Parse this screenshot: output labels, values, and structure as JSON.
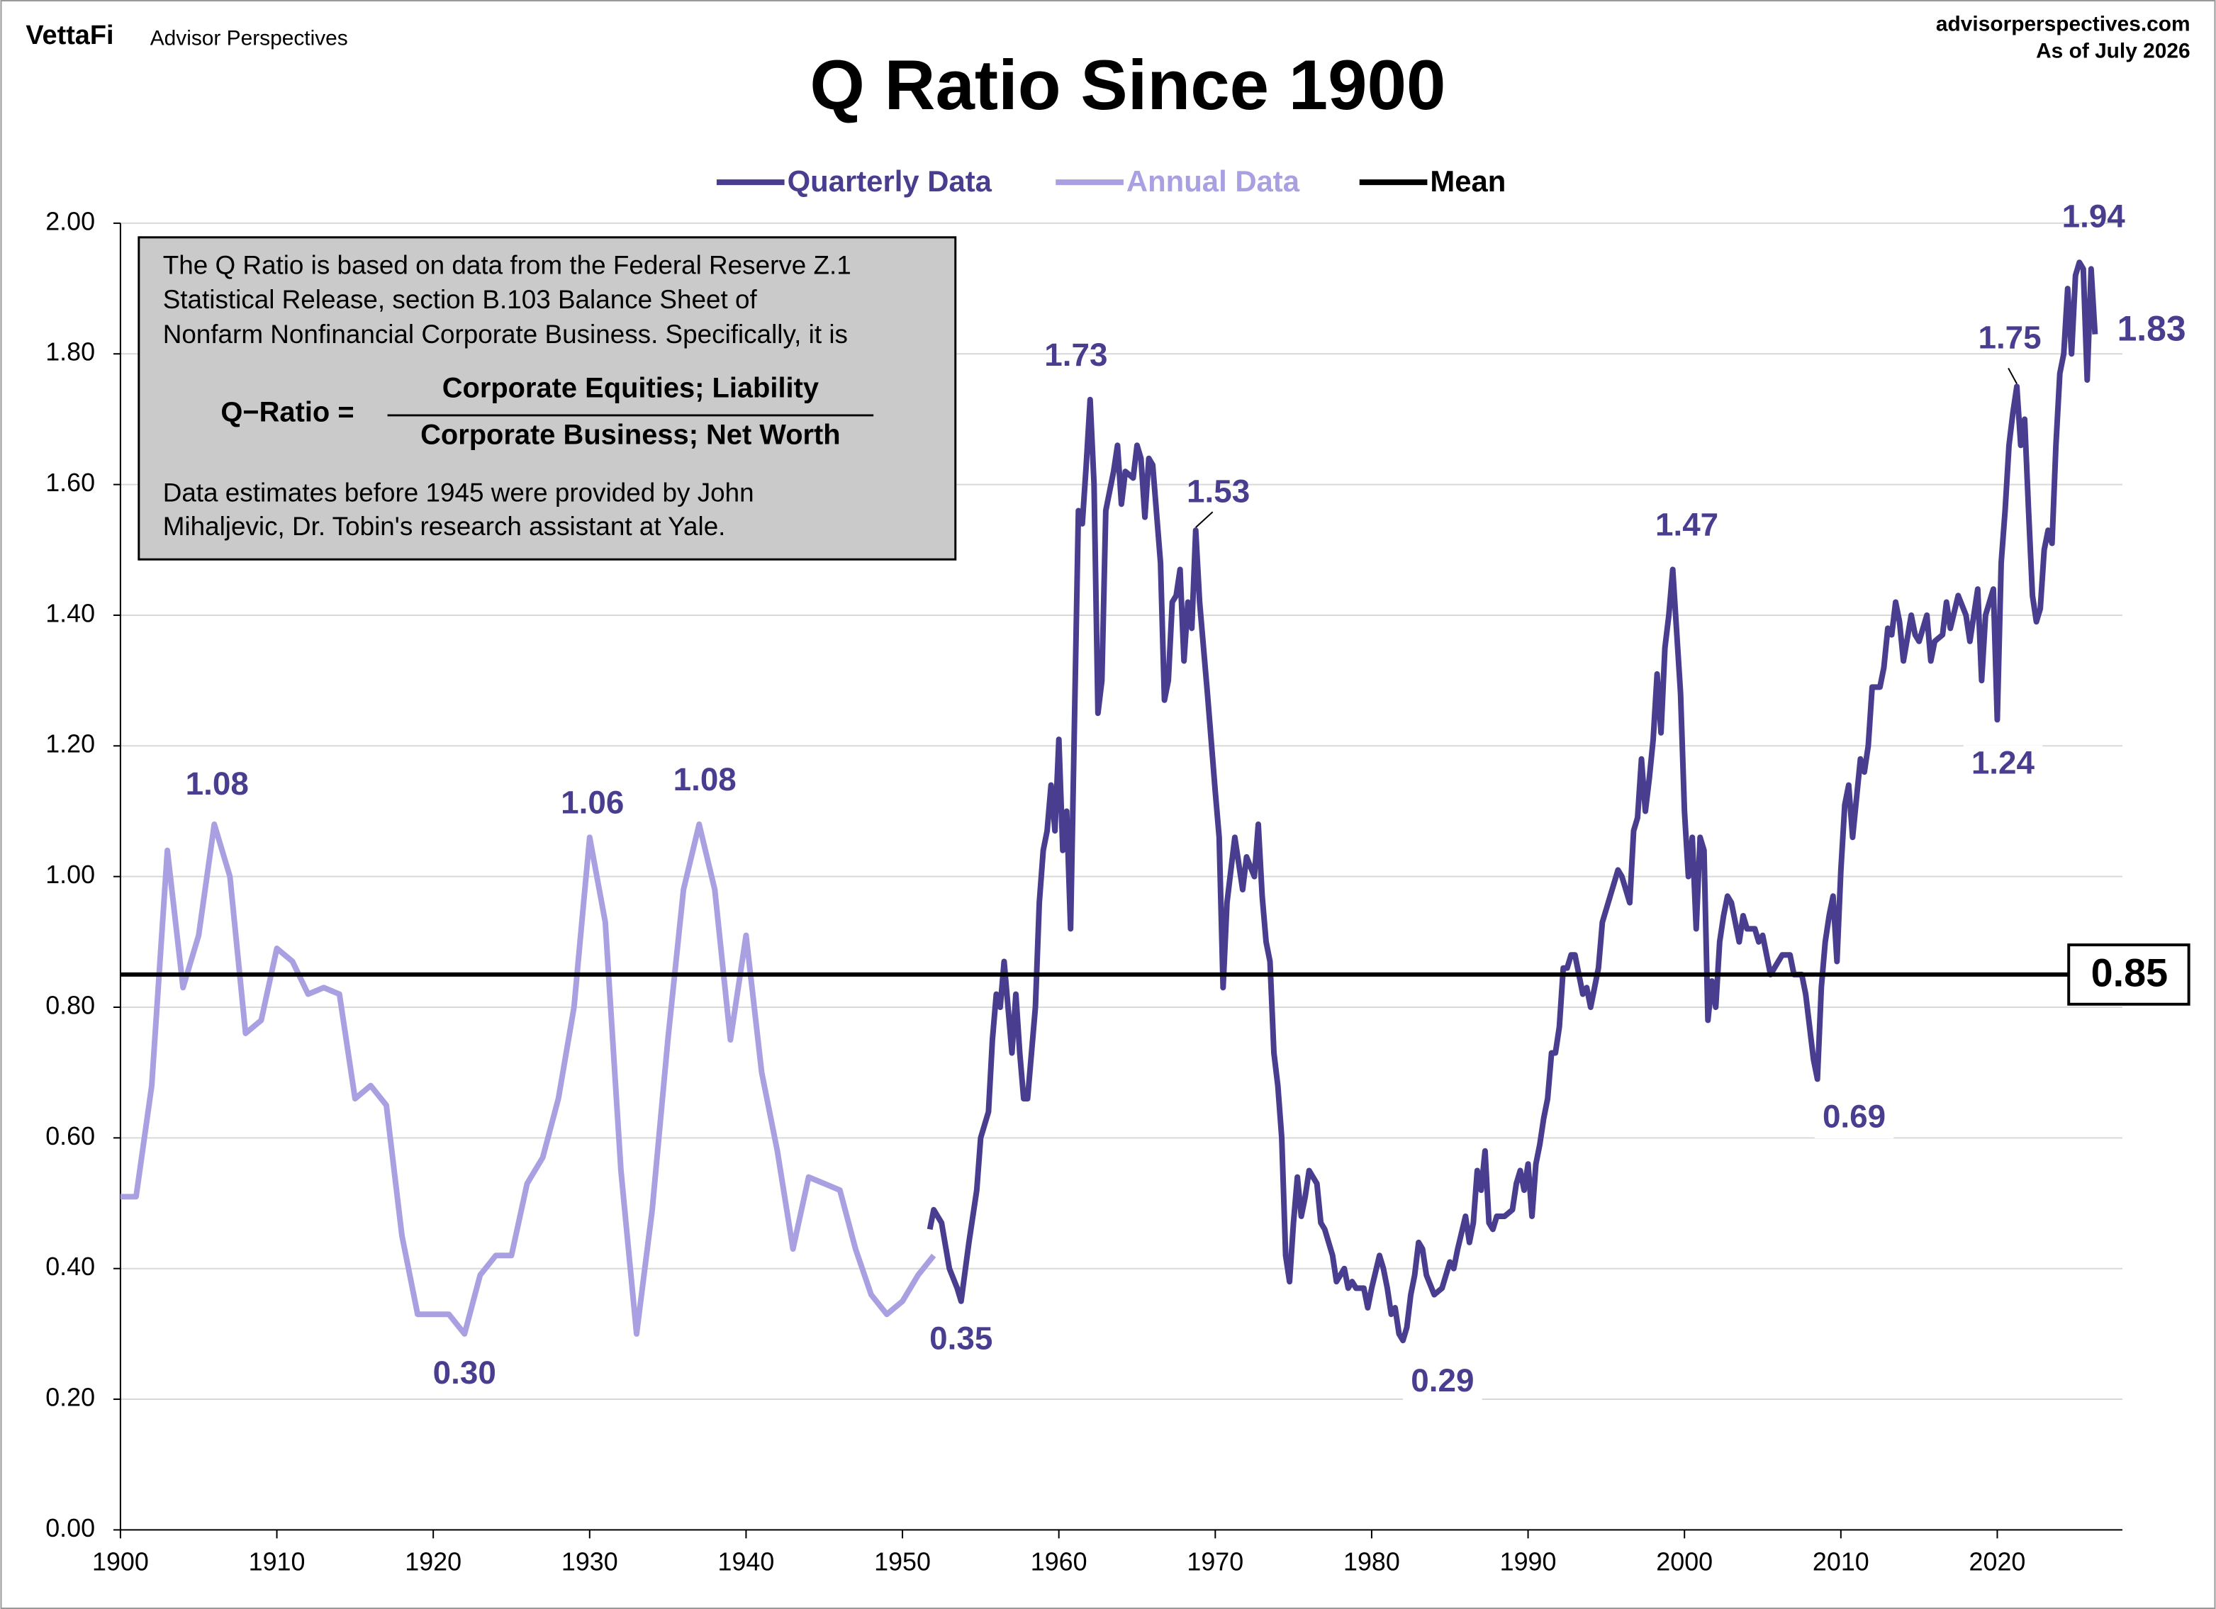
{
  "header": {
    "brand": "VettaFi",
    "publisher": "Advisor Perspectives",
    "site": "advisorperspectives.com",
    "date": "As of July 2026"
  },
  "note": {
    "intro": [
      "The Q Ratio is based on data from the Federal Reserve Z.1",
      "Statistical Release, section B.103 Balance Sheet of",
      "Nonfarm Nonfinancial Corporate Business. Specifically, it is"
    ],
    "formula_label": "Q−Ratio =",
    "numerator": "Corporate Equities; Liability",
    "denominator": "Corporate Business; Net Worth",
    "footer": [
      "Data estimates before 1945 were provided by John",
      "Mihaljevic, Dr. Tobin's research assistant at Yale."
    ]
  },
  "chart_data": {
    "type": "line",
    "title": "Q Ratio Since 1900",
    "legend": "top",
    "grid": true,
    "xlim": [
      1900,
      2028
    ],
    "xticks": [
      1900,
      1910,
      1920,
      1930,
      1940,
      1950,
      1960,
      1970,
      1980,
      1990,
      2000,
      2010,
      2020
    ],
    "ylim": [
      0,
      2
    ],
    "yticks": [
      {
        "value": 0,
        "label": "0.00"
      },
      {
        "value": 0.2,
        "label": "0.20"
      },
      {
        "value": 0.4,
        "label": "0.40"
      },
      {
        "value": 0.6,
        "label": "0.60"
      },
      {
        "value": 0.8,
        "label": "0.80"
      },
      {
        "value": 1,
        "label": "1.00"
      },
      {
        "value": 1.2,
        "label": "1.20"
      },
      {
        "value": 1.4,
        "label": "1.40"
      },
      {
        "value": 1.6,
        "label": "1.60"
      },
      {
        "value": 1.8,
        "label": "1.80"
      },
      {
        "value": 2,
        "label": "2.00"
      }
    ],
    "series": [
      {
        "name": "Quarterly Data",
        "color": "#483d8f",
        "x": [
          1951.75,
          1952,
          1952.5,
          1953,
          1953.5,
          1953.75,
          1954.25,
          1954.75,
          1955,
          1955.5,
          1955.75,
          1956,
          1956.25,
          1956.5,
          1956.75,
          1957,
          1957.25,
          1957.5,
          1957.75,
          1958,
          1958.5,
          1958.75,
          1959,
          1959.25,
          1959.5,
          1959.75,
          1960,
          1960.25,
          1960.5,
          1960.75,
          1961.25,
          1961.5,
          1961.75,
          1962,
          1962.25,
          1962.5,
          1962.75,
          1963,
          1963.5,
          1963.75,
          1964,
          1964.25,
          1964.75,
          1965,
          1965.25,
          1965.5,
          1965.75,
          1966,
          1966.5,
          1966.75,
          1967,
          1967.25,
          1967.5,
          1967.75,
          1968,
          1968.25,
          1968.5,
          1968.75,
          1969,
          1969.5,
          1970,
          1970.25,
          1970.5,
          1970.75,
          1971.25,
          1971.5,
          1971.75,
          1972,
          1972.5,
          1972.75,
          1973,
          1973.25,
          1973.5,
          1973.75,
          1974,
          1974.25,
          1974.5,
          1974.75,
          1975,
          1975.25,
          1975.5,
          1975.75,
          1976,
          1976.5,
          1976.75,
          1977,
          1977.5,
          1977.75,
          1978,
          1978.25,
          1978.5,
          1978.75,
          1979,
          1979.5,
          1979.75,
          1980,
          1980.5,
          1980.75,
          1981,
          1981.25,
          1981.5,
          1981.75,
          1982,
          1982.25,
          1982.5,
          1982.75,
          1983,
          1983.25,
          1983.5,
          1984,
          1984.5,
          1985,
          1985.25,
          1985.5,
          1986,
          1986.25,
          1986.5,
          1986.75,
          1987,
          1987.25,
          1987.5,
          1987.75,
          1988,
          1988.5,
          1989,
          1989.25,
          1989.5,
          1989.75,
          1990,
          1990.25,
          1990.5,
          1990.75,
          1991,
          1991.25,
          1991.5,
          1991.75,
          1992,
          1992.25,
          1992.5,
          1992.75,
          1993,
          1993.5,
          1993.75,
          1994,
          1994.5,
          1994.75,
          1995.25,
          1995.75,
          1996,
          1996.5,
          1996.75,
          1997,
          1997.25,
          1997.5,
          1997.75,
          1998,
          1998.25,
          1998.5,
          1998.75,
          1999,
          1999.25,
          1999.75,
          2000,
          2000.25,
          2000.5,
          2000.75,
          2001,
          2001.25,
          2001.5,
          2001.75,
          2002,
          2002.25,
          2002.5,
          2002.75,
          2003,
          2003.5,
          2003.75,
          2004,
          2004.5,
          2004.75,
          2005,
          2005.5,
          2006,
          2006.25,
          2006.75,
          2007,
          2007.5,
          2007.75,
          2008,
          2008.25,
          2008.5,
          2008.75,
          2009,
          2009.25,
          2009.5,
          2009.75,
          2010,
          2010.25,
          2010.5,
          2010.75,
          2011,
          2011.25,
          2011.5,
          2011.75,
          2012,
          2012.5,
          2012.75,
          2013,
          2013.25,
          2013.5,
          2013.75,
          2014,
          2014.5,
          2014.75,
          2015,
          2015.5,
          2015.75,
          2016,
          2016.5,
          2016.75,
          2017,
          2017.5,
          2018,
          2018.25,
          2018.75,
          2019,
          2019.25,
          2019.5,
          2019.75,
          2020,
          2020.25,
          2020.5,
          2020.75,
          2021,
          2021.25,
          2021.5,
          2021.75,
          2022,
          2022.25,
          2022.5,
          2022.75,
          2023,
          2023.25,
          2023.5,
          2023.75,
          2024,
          2024.25,
          2024.5,
          2024.75,
          2025,
          2025.25,
          2025.5,
          2025.75,
          2026,
          2026.25
        ],
        "values": [
          0.46,
          0.49,
          0.47,
          0.4,
          0.37,
          0.35,
          0.44,
          0.52,
          0.6,
          0.64,
          0.75,
          0.82,
          0.8,
          0.87,
          0.8,
          0.73,
          0.82,
          0.73,
          0.66,
          0.66,
          0.8,
          0.96,
          1.04,
          1.07,
          1.14,
          1.07,
          1.21,
          1.04,
          1.1,
          0.92,
          1.56,
          1.54,
          1.63,
          1.73,
          1.6,
          1.25,
          1.3,
          1.56,
          1.62,
          1.66,
          1.57,
          1.62,
          1.61,
          1.66,
          1.64,
          1.55,
          1.64,
          1.63,
          1.48,
          1.27,
          1.3,
          1.42,
          1.43,
          1.47,
          1.33,
          1.42,
          1.38,
          1.53,
          1.42,
          1.28,
          1.13,
          1.06,
          0.83,
          0.96,
          1.06,
          1.02,
          0.98,
          1.03,
          1.0,
          1.08,
          0.97,
          0.9,
          0.87,
          0.73,
          0.68,
          0.6,
          0.42,
          0.38,
          0.47,
          0.54,
          0.48,
          0.51,
          0.55,
          0.53,
          0.47,
          0.46,
          0.42,
          0.38,
          0.39,
          0.4,
          0.37,
          0.38,
          0.37,
          0.37,
          0.34,
          0.37,
          0.42,
          0.4,
          0.37,
          0.33,
          0.34,
          0.3,
          0.29,
          0.31,
          0.36,
          0.39,
          0.44,
          0.43,
          0.39,
          0.36,
          0.37,
          0.41,
          0.4,
          0.43,
          0.48,
          0.44,
          0.47,
          0.55,
          0.52,
          0.58,
          0.47,
          0.46,
          0.48,
          0.48,
          0.49,
          0.53,
          0.55,
          0.52,
          0.56,
          0.48,
          0.56,
          0.59,
          0.63,
          0.66,
          0.73,
          0.73,
          0.77,
          0.86,
          0.86,
          0.88,
          0.88,
          0.82,
          0.83,
          0.8,
          0.86,
          0.93,
          0.97,
          1.01,
          1.0,
          0.96,
          1.07,
          1.09,
          1.18,
          1.1,
          1.15,
          1.21,
          1.31,
          1.22,
          1.35,
          1.4,
          1.47,
          1.28,
          1.1,
          1.0,
          1.06,
          0.92,
          1.06,
          1.04,
          0.78,
          0.84,
          0.8,
          0.9,
          0.94,
          0.97,
          0.96,
          0.9,
          0.94,
          0.92,
          0.92,
          0.9,
          0.91,
          0.85,
          0.87,
          0.88,
          0.88,
          0.85,
          0.85,
          0.82,
          0.77,
          0.72,
          0.69,
          0.83,
          0.9,
          0.94,
          0.97,
          0.87,
          1.01,
          1.11,
          1.14,
          1.06,
          1.12,
          1.18,
          1.16,
          1.2,
          1.29,
          1.29,
          1.32,
          1.38,
          1.37,
          1.42,
          1.39,
          1.33,
          1.4,
          1.37,
          1.36,
          1.4,
          1.33,
          1.36,
          1.37,
          1.42,
          1.38,
          1.43,
          1.4,
          1.36,
          1.44,
          1.3,
          1.4,
          1.42,
          1.44,
          1.24,
          1.48,
          1.56,
          1.66,
          1.71,
          1.75,
          1.66,
          1.7,
          1.56,
          1.43,
          1.39,
          1.41,
          1.5,
          1.53,
          1.51,
          1.66,
          1.77,
          1.8,
          1.9,
          1.8,
          1.92,
          1.94,
          1.93,
          1.76,
          1.93,
          1.83
        ]
      },
      {
        "name": "Annual Data",
        "color": "#a9a0e2",
        "x": [
          1900,
          1901,
          1902,
          1903,
          1904,
          1905,
          1906,
          1907,
          1908,
          1909,
          1910,
          1911,
          1912,
          1913,
          1914,
          1915,
          1916,
          1917,
          1918,
          1919,
          1920,
          1921,
          1922,
          1923,
          1924,
          1925,
          1926,
          1927,
          1928,
          1929,
          1930,
          1931,
          1932,
          1933,
          1934,
          1935,
          1936,
          1937,
          1938,
          1939,
          1940,
          1941,
          1942,
          1943,
          1944,
          1945,
          1946,
          1947,
          1948,
          1949,
          1950,
          1951,
          1952
        ],
        "values": [
          0.51,
          0.51,
          0.68,
          1.04,
          0.83,
          0.91,
          1.08,
          1.0,
          0.76,
          0.78,
          0.89,
          0.87,
          0.82,
          0.83,
          0.82,
          0.66,
          0.68,
          0.65,
          0.45,
          0.33,
          0.33,
          0.33,
          0.3,
          0.39,
          0.42,
          0.42,
          0.53,
          0.57,
          0.66,
          0.8,
          1.06,
          0.93,
          0.55,
          0.3,
          0.49,
          0.75,
          0.98,
          1.08,
          0.98,
          0.75,
          0.91,
          0.7,
          0.58,
          0.43,
          0.54,
          0.53,
          0.52,
          0.43,
          0.36,
          0.33,
          0.35,
          0.39,
          0.42
        ]
      }
    ],
    "mean": {
      "name": "Mean",
      "color": "#000000",
      "value": 0.85
    },
    "annotations": [
      {
        "x": 1906,
        "value": 1.08,
        "label": "1.08"
      },
      {
        "x": 1922,
        "value": 0.3,
        "label": "0.30"
      },
      {
        "x": 1930,
        "value": 1.06,
        "label": "1.06"
      },
      {
        "x": 1937,
        "value": 1.08,
        "label": "1.08"
      },
      {
        "x": 1953.75,
        "value": 0.35,
        "label": "0.35"
      },
      {
        "x": 1962,
        "value": 1.73,
        "label": "1.73"
      },
      {
        "x": 1968.75,
        "value": 1.53,
        "label": "1.53"
      },
      {
        "x": 1982,
        "value": 0.29,
        "label": "0.29"
      },
      {
        "x": 1999.25,
        "value": 1.47,
        "label": "1.47"
      },
      {
        "x": 2008.5,
        "value": 0.69,
        "label": "0.69"
      },
      {
        "x": 2021.25,
        "value": 1.75,
        "label": "1.75"
      },
      {
        "x": 2020,
        "value": 1.24,
        "label": "1.24"
      },
      {
        "x": 2025.25,
        "value": 1.94,
        "label": "1.94"
      },
      {
        "x": 2026.25,
        "value": 1.83,
        "label": "1.83"
      }
    ]
  }
}
